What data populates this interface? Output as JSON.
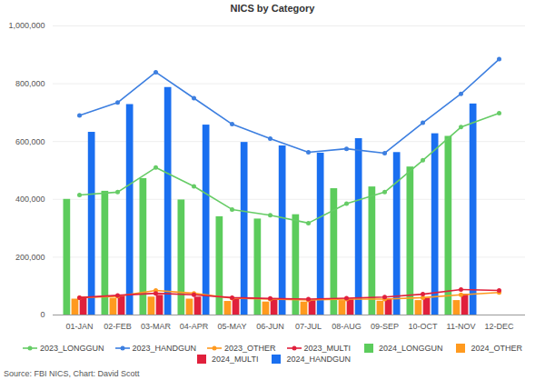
{
  "chart_data": {
    "type": "bar",
    "title": "NICS by Category",
    "source": "Source: FBI NICS, Chart: David Scott",
    "categories": [
      "01-JAN",
      "02-FEB",
      "03-MAR",
      "04-APR",
      "05-MAY",
      "06-JUN",
      "07-JUL",
      "08-AUG",
      "09-SEP",
      "10-OCT",
      "11-NOV",
      "12-DEC"
    ],
    "series": [
      {
        "name": "2023_LONGGUN",
        "type": "line",
        "marker": "circle",
        "color": "#66cc66",
        "values": [
          415000,
          425000,
          510000,
          445000,
          365000,
          345000,
          318000,
          385000,
          425000,
          535000,
          650000,
          698000
        ]
      },
      {
        "name": "2023_HANDGUN",
        "type": "line",
        "marker": "circle",
        "color": "#3d7fe0",
        "values": [
          690000,
          735000,
          840000,
          750000,
          660000,
          610000,
          563000,
          575000,
          560000,
          665000,
          765000,
          885000
        ]
      },
      {
        "name": "2023_OTHER",
        "type": "line",
        "marker": "circle",
        "color": "#ff9a1f",
        "values": [
          60000,
          65000,
          85000,
          75000,
          58000,
          55000,
          52000,
          55000,
          55000,
          60000,
          70000,
          78000
        ]
      },
      {
        "name": "2023_MULTI",
        "type": "line",
        "marker": "circle",
        "color": "#e0203c",
        "values": [
          60000,
          68000,
          75000,
          70000,
          60000,
          57000,
          55000,
          58000,
          62000,
          72000,
          88000,
          85000
        ]
      },
      {
        "name": "2024_LONGGUN",
        "type": "bar",
        "color": "#5ccc5c",
        "values": [
          400000,
          428000,
          472000,
          398000,
          340000,
          332000,
          347000,
          437000,
          443000,
          512000,
          618000,
          null
        ]
      },
      {
        "name": "2024_OTHER",
        "type": "bar",
        "color": "#ff9a1f",
        "values": [
          55000,
          58000,
          62000,
          55000,
          47000,
          45000,
          45000,
          50000,
          48000,
          50000,
          50000,
          null
        ]
      },
      {
        "name": "2024_MULTI",
        "type": "bar",
        "color": "#e0203c",
        "values": [
          62000,
          65000,
          68000,
          62000,
          55000,
          53000,
          50000,
          55000,
          55000,
          58000,
          72000,
          null
        ]
      },
      {
        "name": "2024_HANDGUN",
        "type": "bar",
        "color": "#1a6ff0",
        "values": [
          632000,
          728000,
          787000,
          657000,
          597000,
          585000,
          560000,
          610000,
          562000,
          627000,
          730000,
          null
        ]
      }
    ],
    "ylim": [
      0,
      1000000
    ],
    "yticks": [
      0,
      {
        "value": 200000,
        "label": "200,000"
      },
      {
        "value": 400000,
        "label": "400,000"
      },
      {
        "value": 600000,
        "label": "600,000"
      },
      {
        "value": 800000,
        "label": "800,000"
      },
      {
        "value": 1000000,
        "label": "1,000,000"
      }
    ],
    "grid": true,
    "legend": "bottom"
  }
}
